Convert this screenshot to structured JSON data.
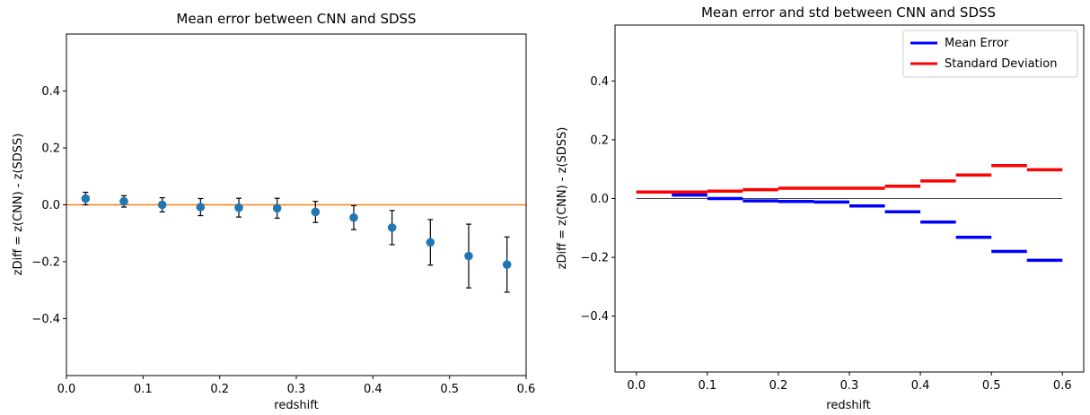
{
  "chart_data": [
    {
      "type": "scatter",
      "title": "Mean error between CNN and SDSS",
      "xlabel": "redshift",
      "ylabel": "zDiff = z(CNN) - z(SDSS)",
      "xlim": [
        0.0,
        0.6
      ],
      "ylim": [
        -0.6,
        0.6
      ],
      "xticks": [
        0.0,
        0.1,
        0.2,
        0.3,
        0.4,
        0.5,
        0.6
      ],
      "xtick_labels": [
        "0.0",
        "0.1",
        "0.2",
        "0.3",
        "0.4",
        "0.5",
        "0.6"
      ],
      "yticks": [
        -0.4,
        -0.2,
        0.0,
        0.2,
        0.4
      ],
      "ytick_labels": [
        "−0.4",
        "−0.2",
        "0.0",
        "0.2",
        "0.4"
      ],
      "grid": false,
      "reference_line": {
        "y": 0.0,
        "color": "#ff7f0e"
      },
      "point_color": "#1f77b4",
      "errorbar_color": "#000000",
      "points": [
        {
          "x": 0.025,
          "y": 0.022,
          "err": 0.022
        },
        {
          "x": 0.075,
          "y": 0.012,
          "err": 0.02
        },
        {
          "x": 0.125,
          "y": 0.0,
          "err": 0.025
        },
        {
          "x": 0.175,
          "y": -0.008,
          "err": 0.03
        },
        {
          "x": 0.225,
          "y": -0.01,
          "err": 0.033
        },
        {
          "x": 0.275,
          "y": -0.012,
          "err": 0.035
        },
        {
          "x": 0.325,
          "y": -0.025,
          "err": 0.037
        },
        {
          "x": 0.375,
          "y": -0.045,
          "err": 0.042
        },
        {
          "x": 0.425,
          "y": -0.08,
          "err": 0.06
        },
        {
          "x": 0.475,
          "y": -0.132,
          "err": 0.08
        },
        {
          "x": 0.525,
          "y": -0.18,
          "err": 0.112
        },
        {
          "x": 0.575,
          "y": -0.21,
          "err": 0.097
        }
      ]
    },
    {
      "type": "step",
      "title": "Mean error and std between CNN and SDSS",
      "xlabel": "redshift",
      "ylabel": "zDiff = z(CNN) - z(SDSS)",
      "xlim": [
        -0.03,
        0.63
      ],
      "ylim": [
        -0.59,
        0.59
      ],
      "xticks": [
        0.0,
        0.1,
        0.2,
        0.3,
        0.4,
        0.5,
        0.6
      ],
      "xtick_labels": [
        "0.0",
        "0.1",
        "0.2",
        "0.3",
        "0.4",
        "0.5",
        "0.6"
      ],
      "yticks": [
        -0.4,
        -0.2,
        0.0,
        0.2,
        0.4
      ],
      "ytick_labels": [
        "−0.4",
        "−0.2",
        "0.0",
        "0.2",
        "0.4"
      ],
      "grid": false,
      "legend_placement": "top-right",
      "reference_line": {
        "y": 0.0,
        "x_range": [
          0.0,
          0.6
        ],
        "color": "#000000"
      },
      "bin_edges": [
        0.0,
        0.05,
        0.1,
        0.15,
        0.2,
        0.25,
        0.3,
        0.35,
        0.4,
        0.45,
        0.5,
        0.55,
        0.6
      ],
      "series": [
        {
          "name": "Mean Error",
          "color": "#0000ff",
          "values": [
            0.022,
            0.012,
            0.0,
            -0.008,
            -0.01,
            -0.012,
            -0.025,
            -0.045,
            -0.08,
            -0.132,
            -0.18,
            -0.21
          ]
        },
        {
          "name": "Standard Deviation",
          "color": "#ff0000",
          "values": [
            0.022,
            0.022,
            0.025,
            0.03,
            0.035,
            0.035,
            0.035,
            0.042,
            0.06,
            0.08,
            0.112,
            0.098
          ]
        }
      ]
    }
  ]
}
